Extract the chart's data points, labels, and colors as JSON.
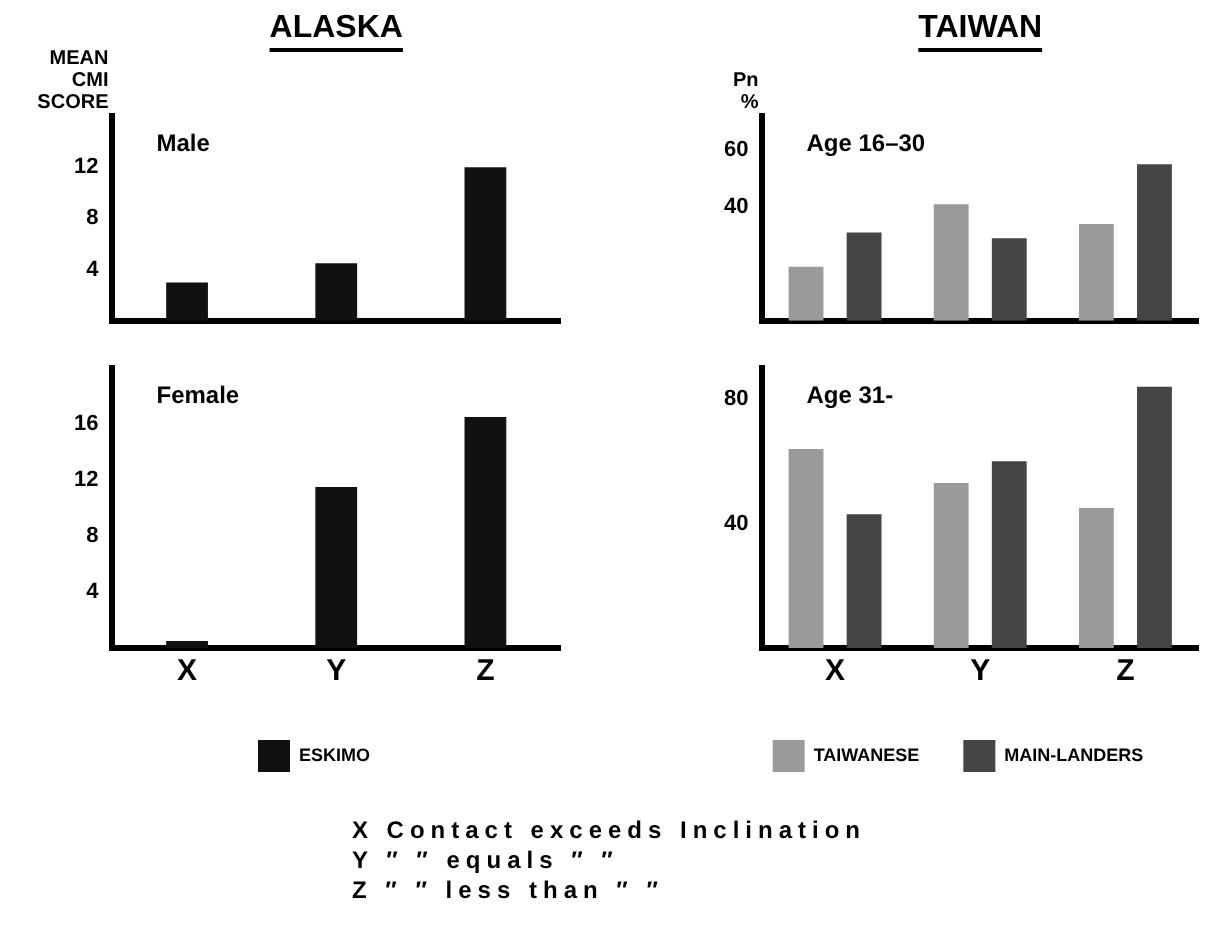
{
  "chart_data": [
    {
      "type": "bar",
      "title": "ALASKA",
      "subtitle": "Male",
      "ylabel": "MEAN CMI SCORE",
      "categories": [
        null,
        null,
        null
      ],
      "tick_labels": "y",
      "ylim": [
        0,
        16
      ],
      "yticks": [
        4,
        8,
        12
      ],
      "series": [
        {
          "color": "#111111",
          "values": [
            3,
            4.5,
            12
          ]
        }
      ]
    },
    {
      "type": "bar",
      "subtitle": "Female",
      "categories": [
        "X",
        "Y",
        "Z"
      ],
      "ylim": [
        0,
        20
      ],
      "yticks": [
        4,
        8,
        12,
        16
      ],
      "legend": "bottom",
      "series": [
        {
          "name": "ESKIMO",
          "color": "#111111",
          "values": [
            0.5,
            11.5,
            16.5
          ]
        }
      ]
    },
    {
      "type": "bar",
      "title": "TAIWAN",
      "subtitle": "Age 16–30",
      "ylabel": "Pn %",
      "categories": [
        null,
        null,
        null
      ],
      "tick_labels": "y",
      "ylim": [
        0,
        72
      ],
      "yticks": [
        40,
        60
      ],
      "series": [
        {
          "color": "#9a9a9a",
          "values": [
            19,
            41,
            34
          ]
        },
        {
          "color": "#444444",
          "values": [
            31,
            29,
            55
          ]
        }
      ]
    },
    {
      "type": "bar",
      "subtitle": "Age 31-",
      "categories": [
        "X",
        "Y",
        "Z"
      ],
      "ylim": [
        0,
        90
      ],
      "yticks": [
        40,
        80
      ],
      "legend": "bottom",
      "annotations": [
        "X Contact exceeds Inclination",
        "Y ″ ″ equals ″ ″",
        "Z ″ ″ less than ″ ″"
      ],
      "series": [
        {
          "name": "TAIWANESE",
          "color": "#9a9a9a",
          "values": [
            64,
            53,
            45
          ]
        },
        {
          "name": "MAIN-LANDERS",
          "color": "#444444",
          "values": [
            43,
            60,
            84
          ]
        }
      ]
    }
  ]
}
